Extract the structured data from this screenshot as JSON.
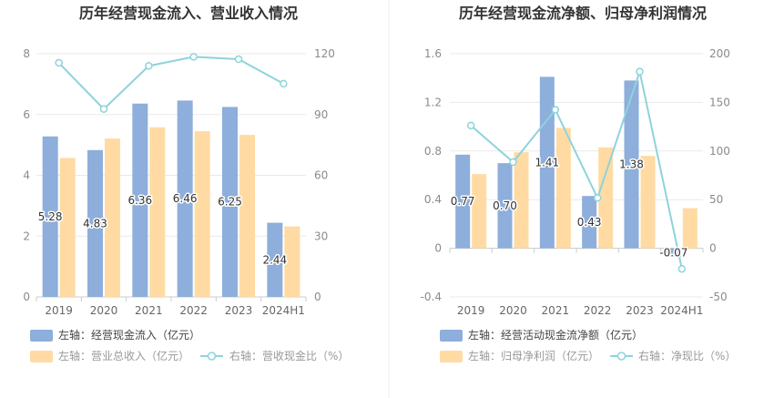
{
  "colors": {
    "bar1": "#8eaedb",
    "bar2": "#ffdba3",
    "line": "#8ed3db"
  },
  "chart_data": [
    {
      "type": "bar",
      "title": "历年经营现金流入、营业收入情况",
      "categories": [
        "2019",
        "2020",
        "2021",
        "2022",
        "2023",
        "2024H1"
      ],
      "series": [
        {
          "name": "左轴：经营现金流入（亿元）",
          "values": [
            5.28,
            4.83,
            6.36,
            6.46,
            6.25,
            2.44
          ],
          "show_labels": true
        },
        {
          "name": "左轴：营业总收入（亿元）",
          "values": [
            4.57,
            5.21,
            5.58,
            5.45,
            5.33,
            2.32
          ],
          "show_labels": false
        }
      ],
      "line_series": {
        "name": "右轴：营收现金比（%）",
        "values": [
          115.5,
          92.7,
          114.0,
          118.5,
          117.3,
          105.2
        ]
      },
      "ylim": [
        0,
        8
      ],
      "yticks": [
        0,
        2,
        4,
        6,
        8
      ],
      "y2lim": [
        0,
        120
      ],
      "y2ticks": [
        0,
        30,
        60,
        90,
        120
      ]
    },
    {
      "type": "bar",
      "title": "历年经营现金流净额、归母净利润情况",
      "categories": [
        "2019",
        "2020",
        "2021",
        "2022",
        "2023",
        "2024H1"
      ],
      "series": [
        {
          "name": "左轴：经营活动现金流净额（亿元）",
          "values": [
            0.77,
            0.7,
            1.41,
            0.43,
            1.38,
            -0.07
          ],
          "show_labels": true
        },
        {
          "name": "左轴：归母净利润（亿元）",
          "values": [
            0.61,
            0.79,
            0.99,
            0.83,
            0.76,
            0.33
          ],
          "show_labels": false
        }
      ],
      "line_series": {
        "name": "右轴：净现比（%）",
        "values": [
          126.2,
          88.6,
          142.4,
          51.8,
          181.6,
          -21.2
        ]
      },
      "ylim": [
        -0.4,
        1.6
      ],
      "yticks": [
        -0.4,
        0,
        0.4,
        0.8,
        1.2,
        1.6
      ],
      "y2lim": [
        -50,
        200
      ],
      "y2ticks": [
        -50,
        0,
        50,
        100,
        150,
        200
      ]
    }
  ]
}
